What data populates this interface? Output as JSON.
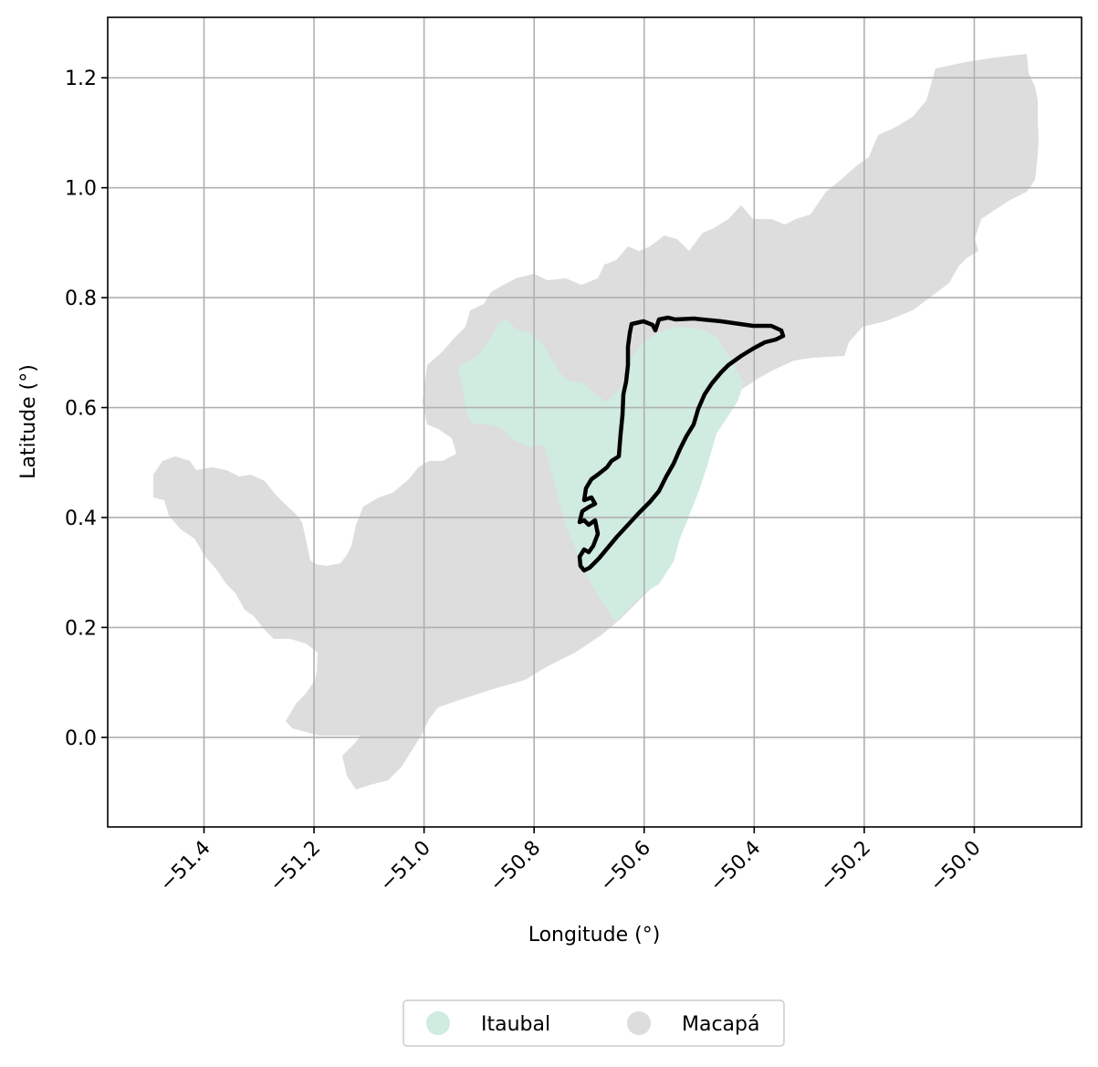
{
  "chart_data": {
    "type": "map",
    "xlabel": "Longitude (°)",
    "ylabel": "Latitude (°)",
    "xlim": [
      -51.575,
      -49.805
    ],
    "ylim": [
      -0.163,
      1.31
    ],
    "xticks": [
      -51.4,
      -51.2,
      -51.0,
      -50.8,
      -50.6,
      -50.4,
      -50.2,
      -50.0
    ],
    "xtick_labels": [
      "−51.4",
      "−51.2",
      "−51.0",
      "−50.8",
      "−50.6",
      "−50.4",
      "−50.2",
      "−50.0"
    ],
    "yticks": [
      0.0,
      0.2,
      0.4,
      0.6,
      0.8,
      1.0,
      1.2
    ],
    "ytick_labels": [
      "0.0",
      "0.2",
      "0.4",
      "0.6",
      "0.8",
      "1.0",
      "1.2"
    ],
    "grid": true,
    "legend_placement": "bottom-center",
    "regions": [
      {
        "name": "Itaubal",
        "color": "#d0ebe0"
      },
      {
        "name": "Macapá",
        "color": "#dddddd"
      }
    ],
    "highlight_outline_color": "#000000"
  }
}
